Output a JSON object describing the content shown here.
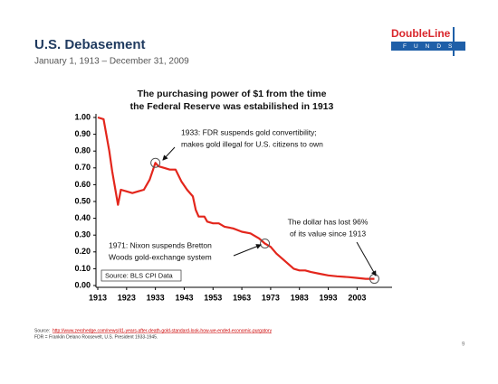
{
  "slide": {
    "title": "U.S. Debasement",
    "subtitle": "January 1, 1913  –  December 31, 2009",
    "logo_name": "DoubleLine",
    "logo_sub": "FUNDS",
    "source_label": "Source:",
    "source_url": "http://www.zerohedge.com/news/41-years-after-death-gold-standard-look-how-we-ended-economic-purgatory",
    "footnote": "FDR = Franklin Delano Roosevelt, U.S. President 1933-1945.",
    "page_number": "9"
  },
  "chart_data": {
    "type": "line",
    "title": [
      "The purchasing power of $1 from the time",
      "the Federal Reserve was estabilished in 1913"
    ],
    "x": [
      1913,
      1915,
      1917,
      1918,
      1920,
      1921,
      1923,
      1925,
      1927,
      1929,
      1931,
      1933,
      1934,
      1936,
      1938,
      1940,
      1942,
      1944,
      1946,
      1947,
      1948,
      1950,
      1951,
      1953,
      1955,
      1957,
      1960,
      1963,
      1966,
      1969,
      1971,
      1973,
      1975,
      1977,
      1979,
      1981,
      1983,
      1985,
      1987,
      1990,
      1993,
      1996,
      2000,
      2003,
      2006,
      2009
    ],
    "values": [
      1.0,
      0.99,
      0.8,
      0.68,
      0.48,
      0.57,
      0.56,
      0.55,
      0.56,
      0.57,
      0.63,
      0.73,
      0.71,
      0.7,
      0.69,
      0.69,
      0.62,
      0.57,
      0.53,
      0.45,
      0.41,
      0.41,
      0.38,
      0.37,
      0.37,
      0.35,
      0.34,
      0.32,
      0.31,
      0.28,
      0.25,
      0.23,
      0.19,
      0.16,
      0.13,
      0.1,
      0.09,
      0.09,
      0.08,
      0.07,
      0.06,
      0.055,
      0.05,
      0.045,
      0.04,
      0.04
    ],
    "color": "#e3261c",
    "xlim": [
      1913,
      2012
    ],
    "xticks": [
      1913,
      1923,
      1933,
      1943,
      1953,
      1963,
      1973,
      1983,
      1993,
      2003
    ],
    "ylim": [
      0,
      1
    ],
    "yticks": [
      {
        "value": 0,
        "label": "0.00"
      },
      {
        "value": 0.1,
        "label": "0.10"
      },
      {
        "value": 0.2,
        "label": "0.20"
      },
      {
        "value": 0.3,
        "label": "0.30"
      },
      {
        "value": 0.4,
        "label": "0.40"
      },
      {
        "value": 0.5,
        "label": "0.50"
      },
      {
        "value": 0.6,
        "label": "0.60"
      },
      {
        "value": 0.7,
        "label": "0.70"
      },
      {
        "value": 0.8,
        "label": "0.80"
      },
      {
        "value": 0.9,
        "label": "0.90"
      },
      {
        "value": 1,
        "label": "1.00"
      }
    ],
    "annotations": [
      [
        "1933: FDR suspends gold convertibility;",
        "makes gold illegal for U.S. citizens to own"
      ],
      [
        "The dollar has lost 96%",
        "of its value since 1913"
      ],
      [
        "1971: Nixon suspends Bretton",
        "Woods gold-exchange system"
      ]
    ],
    "source_note": "Source: BLS CPI Data"
  }
}
